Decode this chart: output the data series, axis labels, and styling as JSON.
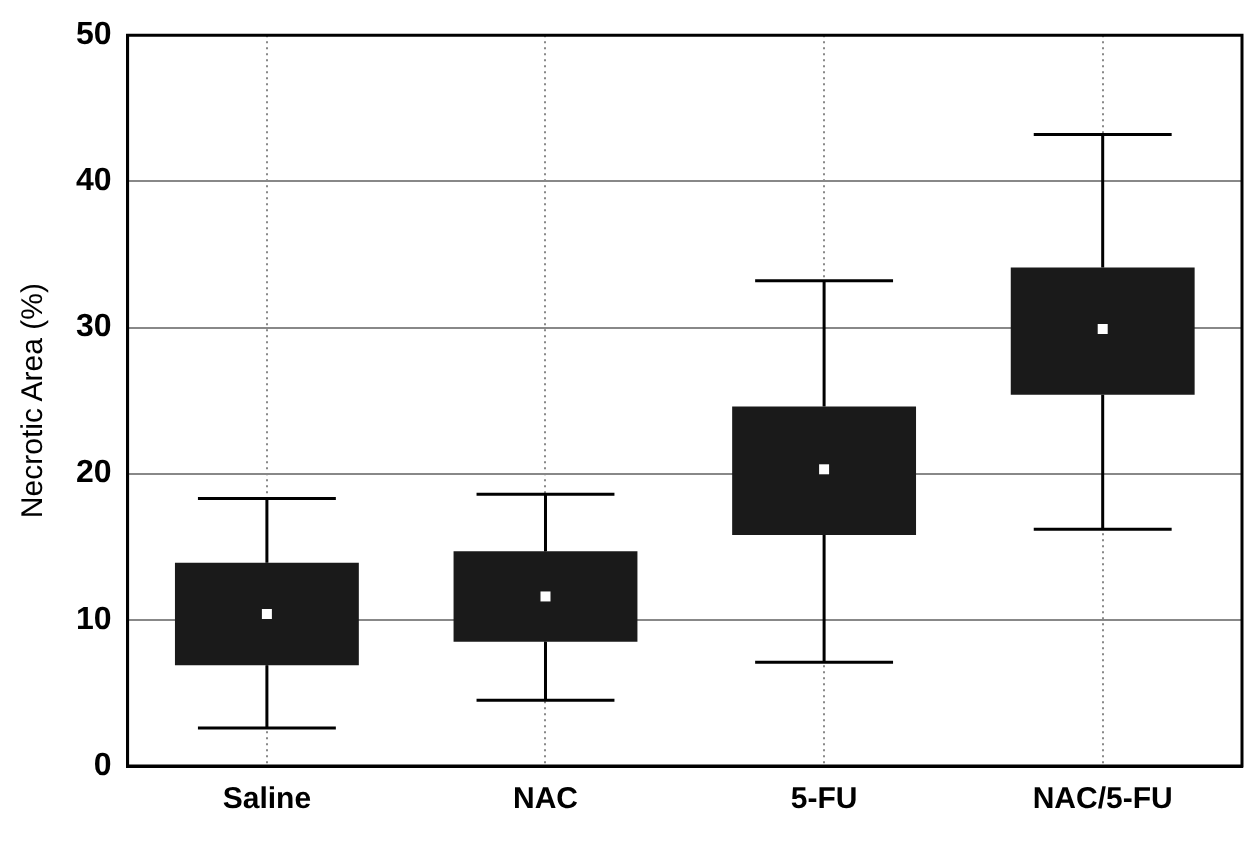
{
  "chart_data": {
    "type": "box",
    "ylabel": "Necrotic Area (%)",
    "categories": [
      "Saline",
      "NAC",
      "5-FU",
      "NAC/5-FU"
    ],
    "color": "#1a1a1a",
    "boxes": [
      {
        "low": 2.6,
        "q1": 6.9,
        "median": 10.4,
        "q3": 13.9,
        "high": 18.3
      },
      {
        "low": 4.5,
        "q1": 8.5,
        "median": 11.6,
        "q3": 14.7,
        "high": 18.6
      },
      {
        "low": 7.1,
        "q1": 15.8,
        "median": 20.3,
        "q3": 24.6,
        "high": 33.2
      },
      {
        "low": 16.2,
        "q1": 25.4,
        "median": 29.9,
        "q3": 34.1,
        "high": 43.2
      }
    ],
    "ylim": [
      0,
      50
    ],
    "yticks": [
      0,
      10,
      20,
      30,
      40,
      50
    ],
    "grid": true
  }
}
